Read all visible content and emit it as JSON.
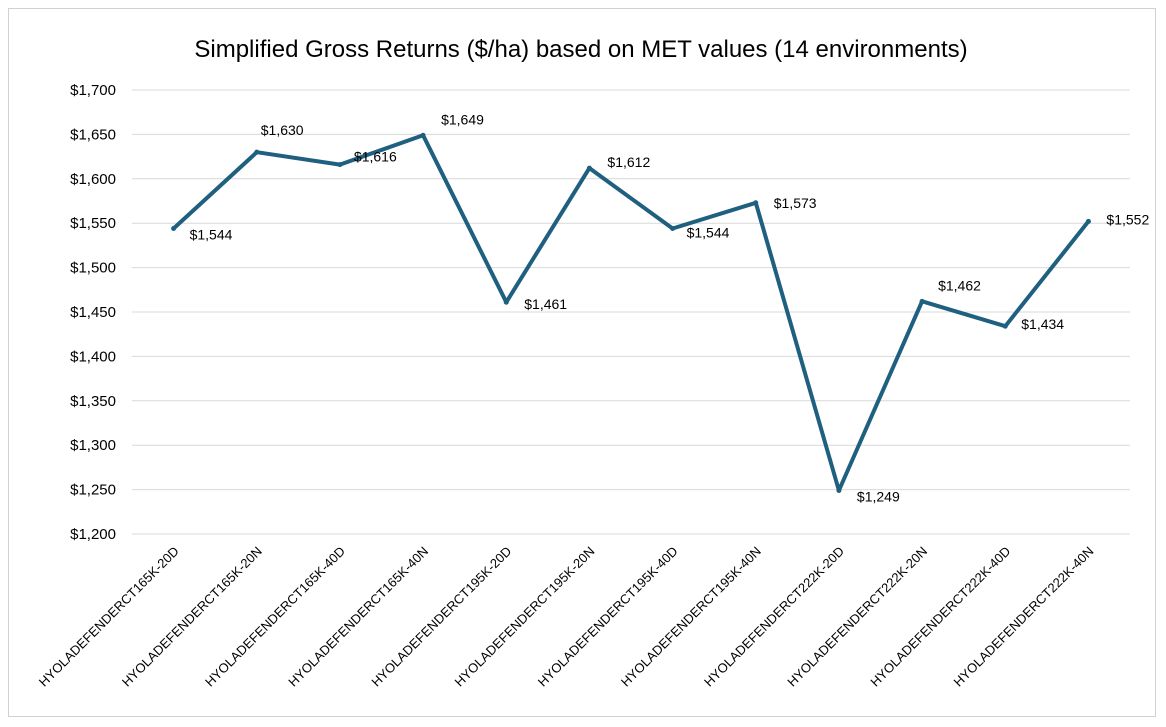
{
  "chart_data": {
    "type": "line",
    "title": "Simplified Gross Returns ($/ha) based on MET values (14 environments)",
    "xlabel": "",
    "ylabel": "",
    "categories": [
      "HYOLADEFENDERCT165K-20D",
      "HYOLADEFENDERCT165K-20N",
      "HYOLADEFENDERCT165K-40D",
      "HYOLADEFENDERCT165K-40N",
      "HYOLADEFENDERCT195K-20D",
      "HYOLADEFENDERCT195K-20N",
      "HYOLADEFENDERCT195K-40D",
      "HYOLADEFENDERCT195K-40N",
      "HYOLADEFENDERCT222K-20D",
      "HYOLADEFENDERCT222K-20N",
      "HYOLADEFENDERCT222K-40D",
      "HYOLADEFENDERCT222K-40N"
    ],
    "series": [
      {
        "values": [
          1544,
          1630,
          1616,
          1649,
          1461,
          1612,
          1544,
          1573,
          1249,
          1462,
          1434,
          1552
        ],
        "data_labels": [
          "$1,544",
          "$1,630",
          "$1,616",
          "$1,649",
          "$1,461",
          "$1,612",
          "$1,544",
          "$1,573",
          "$1,249",
          "$1,462",
          "$1,434",
          "$1,552"
        ],
        "color": "#1f5f7f"
      }
    ],
    "ylim": [
      1200,
      1700
    ],
    "yticks": [
      1200,
      1250,
      1300,
      1350,
      1400,
      1450,
      1500,
      1550,
      1600,
      1650,
      1700
    ],
    "ytick_labels": [
      "$1,200",
      "$1,250",
      "$1,300",
      "$1,350",
      "$1,400",
      "$1,450",
      "$1,500",
      "$1,550",
      "$1,600",
      "$1,650",
      "$1,700"
    ],
    "grid": true,
    "gridline_color": "#d9d9d9",
    "legend": "none"
  }
}
